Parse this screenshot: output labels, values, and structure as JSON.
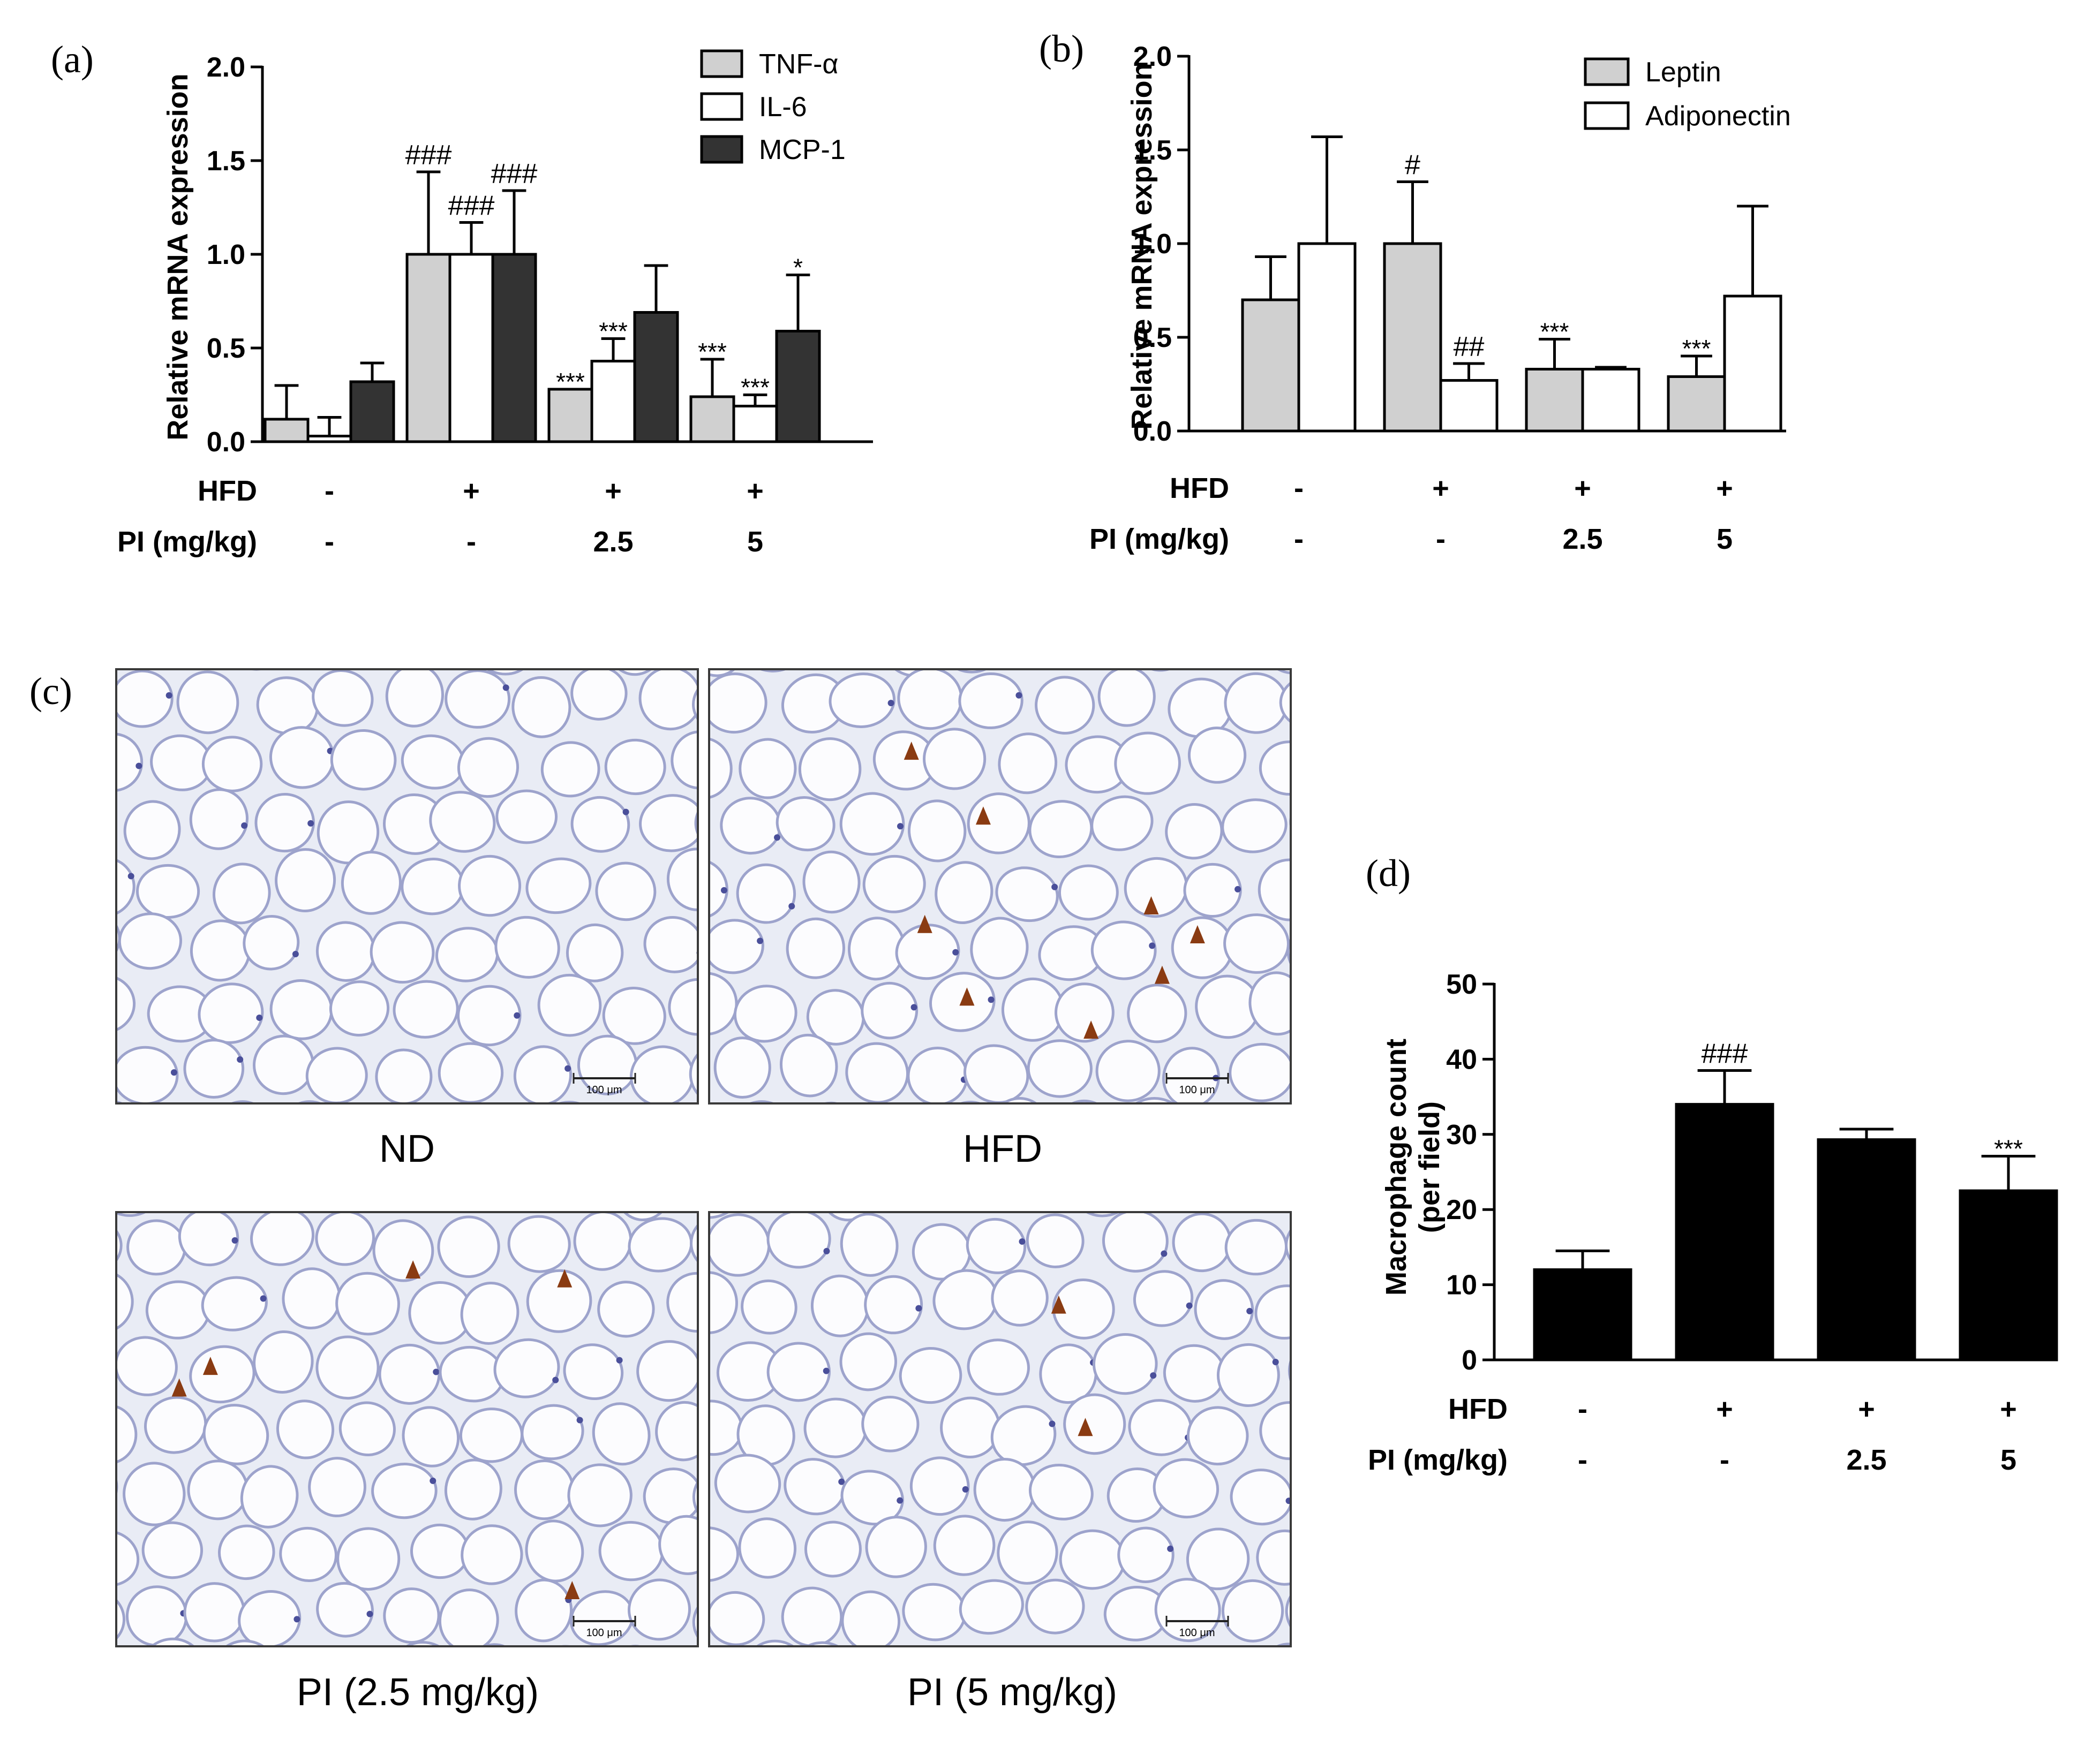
{
  "panels": {
    "a": "(a)",
    "b": "(b)",
    "c": "(c)",
    "d": "(d)"
  },
  "chart_data": [
    {
      "id": "a",
      "type": "bar",
      "ylabel": "Relative mRNA expression",
      "ylim": [
        0,
        2.0
      ],
      "yticks": [
        "0.0",
        "0.5",
        "1.0",
        "1.5",
        "2.0"
      ],
      "grid": false,
      "legend_position": "top-right",
      "groups": [
        "G1",
        "G2",
        "G3",
        "G4"
      ],
      "series": [
        {
          "name": "TNF-α",
          "color": "#d0d0d0",
          "values": [
            0.12,
            1.0,
            0.28,
            0.24
          ],
          "errors": [
            0.18,
            0.44,
            0.0,
            0.2
          ],
          "annotations": [
            "",
            "###",
            "***",
            "***"
          ]
        },
        {
          "name": "IL-6",
          "color": "#ffffff",
          "values": [
            0.03,
            1.0,
            0.43,
            0.19
          ],
          "errors": [
            0.1,
            0.17,
            0.12,
            0.06
          ],
          "annotations": [
            "",
            "###",
            "***",
            "***"
          ]
        },
        {
          "name": "MCP-1",
          "color": "#333333",
          "values": [
            0.32,
            1.0,
            0.69,
            0.59
          ],
          "errors": [
            0.1,
            0.34,
            0.25,
            0.3
          ],
          "annotations": [
            "",
            "###",
            "",
            "*"
          ]
        }
      ],
      "rows": [
        {
          "label": "HFD",
          "values": [
            "-",
            "+",
            "+",
            "+"
          ]
        },
        {
          "label": "PI (mg/kg)",
          "values": [
            "-",
            "-",
            "2.5",
            "5"
          ]
        }
      ]
    },
    {
      "id": "b",
      "type": "bar",
      "ylabel": "Relative mRNA expression",
      "ylim": [
        0,
        2.0
      ],
      "yticks": [
        "0.0",
        "0.5",
        "1.0",
        "1.5",
        "2.0"
      ],
      "grid": false,
      "legend_position": "top-right",
      "groups": [
        "G1",
        "G2",
        "G3",
        "G4"
      ],
      "series": [
        {
          "name": "Leptin",
          "color": "#d0d0d0",
          "values": [
            0.7,
            1.0,
            0.33,
            0.29
          ],
          "errors": [
            0.23,
            0.33,
            0.16,
            0.11
          ],
          "annotations": [
            "",
            "#",
            "***",
            "***"
          ]
        },
        {
          "name": "Adiponectin",
          "color": "#ffffff",
          "values": [
            1.0,
            0.27,
            0.33,
            0.72
          ],
          "errors": [
            0.57,
            0.09,
            0.01,
            0.48
          ],
          "annotations": [
            "",
            "##",
            "",
            ""
          ]
        }
      ],
      "rows": [
        {
          "label": "HFD",
          "values": [
            "-",
            "+",
            "+",
            "+"
          ]
        },
        {
          "label": "PI (mg/kg)",
          "values": [
            "-",
            "-",
            "2.5",
            "5"
          ]
        }
      ]
    },
    {
      "id": "d",
      "type": "bar",
      "ylabel_lines": [
        "Macrophage count",
        "(per field)"
      ],
      "ylim": [
        0,
        50
      ],
      "yticks": [
        "0",
        "10",
        "20",
        "30",
        "40",
        "50"
      ],
      "grid": false,
      "groups": [
        "G1",
        "G2",
        "G3",
        "G4"
      ],
      "series": [
        {
          "color": "#000000",
          "values": [
            12.0,
            34.0,
            29.3,
            22.5
          ],
          "errors": [
            2.5,
            4.5,
            1.4,
            4.6
          ],
          "annotations": [
            "",
            "###",
            "",
            "***"
          ]
        }
      ],
      "rows": [
        {
          "label": "HFD",
          "values": [
            "-",
            "+",
            "+",
            "+"
          ]
        },
        {
          "label": "PI (mg/kg)",
          "values": [
            "-",
            "-",
            "2.5",
            "5"
          ]
        }
      ]
    }
  ],
  "micrographs": [
    {
      "caption": "ND",
      "scale_label": "100 μm",
      "arrows": 0
    },
    {
      "caption": "HFD",
      "scale_label": "100 μm",
      "arrows": 8
    },
    {
      "caption": "PI (2.5 mg/kg)",
      "scale_label": "100 μm",
      "arrows": 5
    },
    {
      "caption": "PI (5 mg/kg)",
      "scale_label": "100 μm",
      "arrows": 2
    }
  ]
}
